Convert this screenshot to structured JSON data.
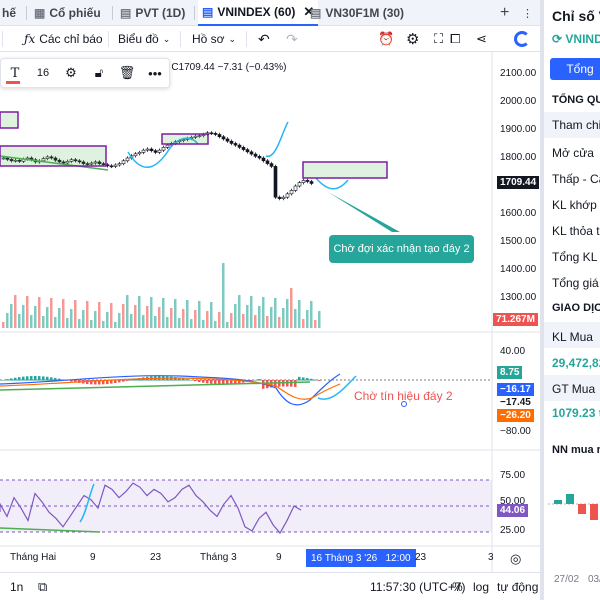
{
  "tabs": [
    {
      "label": "hế"
    },
    {
      "label": "Cổ phiếu"
    },
    {
      "label": "PVT (1D)"
    },
    {
      "label": "VNINDEX (60)"
    },
    {
      "label": "VN30F1M (30)"
    }
  ],
  "toolbar": {
    "indicators_label": "Các chỉ báo",
    "chart_type_label": "Biểu đồ",
    "profile_label": "Hồ sơ"
  },
  "draw_toolbar": {
    "font_size": "16"
  },
  "legend": {
    "text": "9  C1709.44  −7.31 (−0.43%)"
  },
  "price_axis": {
    "ticks": [
      "2100.00",
      "2000.00",
      "1900.00",
      "1800.00",
      "1700.00",
      "1600.00",
      "1500.00",
      "1400.00",
      "1300.00"
    ],
    "last_price": "1709.44",
    "volume_badge": "71.267M"
  },
  "macd_axis": {
    "ticks": [
      "40.00",
      "−80.00"
    ],
    "badges": [
      "8.75",
      "−16.17",
      "−17.45",
      "−26.20"
    ]
  },
  "rsi_axis": {
    "ticks": [
      "75.00",
      "50.00",
      "25.00"
    ],
    "badge": "44.06"
  },
  "annotations": {
    "callout": "Chờ đợi xác nhận tạo đáy 2",
    "signal_text": "Chờ tín hiệu đáy 2"
  },
  "time_axis": {
    "labels": [
      "Tháng Hai",
      "9",
      "23",
      "Tháng 3",
      "9",
      "23",
      "3"
    ],
    "crosshair": "16 Tháng 3 '26   12:00"
  },
  "bottom_bar": {
    "range_label": "1n",
    "time": "11:57:30 (UTC+7)",
    "percent": "%",
    "log": "log",
    "auto": "tự động"
  },
  "right_panel": {
    "title": "Chỉ số V",
    "symbol": "VNINDI",
    "button": "Tổng",
    "section_overview": "TỔNG QU",
    "rows": [
      "Tham chiế",
      "Mở cửa",
      "Thấp - Cao",
      "KL khớp",
      "KL thỏa thu",
      "Tổng KL",
      "Tổng giá tr"
    ],
    "section_trade": "GIAO DỊC",
    "buy_vol_label": "KL Mua",
    "buy_vol_value": "29,472,82",
    "buy_val_label": "GT Mua",
    "buy_val_value": "1079.23 tỷ",
    "foreign_label": "NN mua rò",
    "dates": [
      "27/02",
      "03/"
    ]
  },
  "colors": {
    "accent": "#2962ff",
    "up": "#26a69a",
    "down": "#ef5350",
    "annotation_purple": "#7b1fa2",
    "callout_teal": "#26a69a",
    "rsi_band": "#7e57c2"
  }
}
